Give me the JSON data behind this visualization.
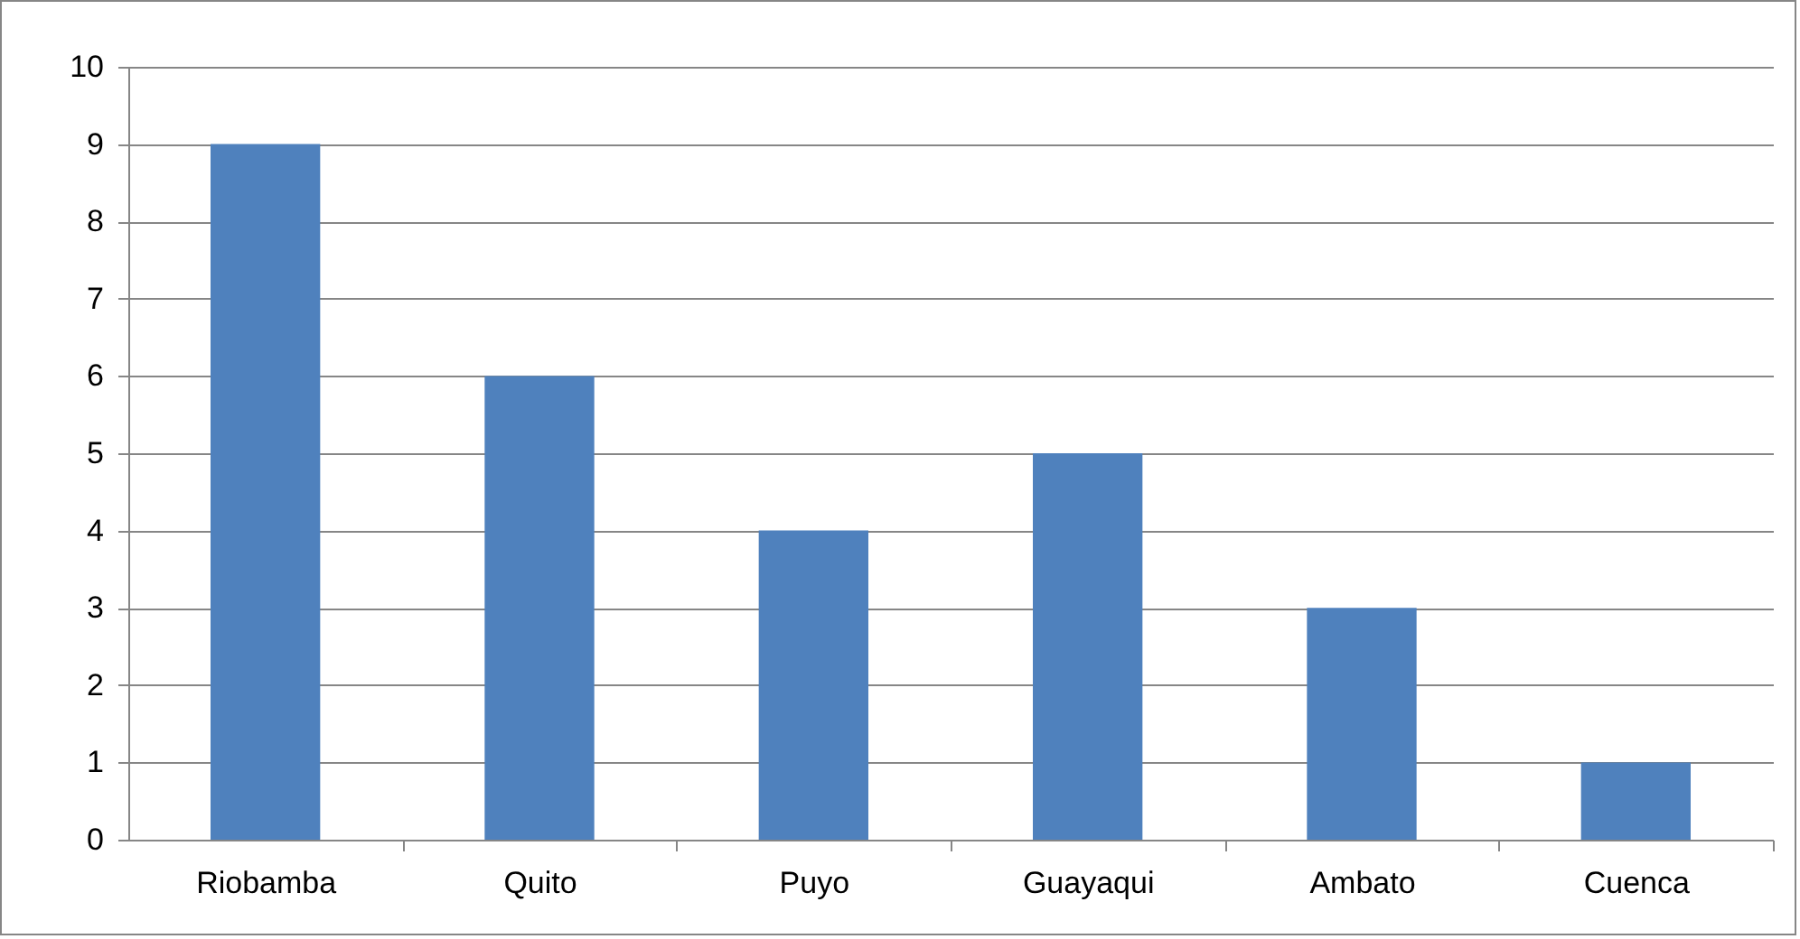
{
  "chart_data": {
    "type": "bar",
    "categories": [
      "Riobamba",
      "Quito",
      "Puyo",
      "Guayaqui",
      "Ambato",
      "Cuenca"
    ],
    "values": [
      9,
      6,
      4,
      5,
      3,
      1
    ],
    "color": "#4f81bd",
    "ylim": [
      0,
      10
    ],
    "yticks": [
      0,
      1,
      2,
      3,
      4,
      5,
      6,
      7,
      8,
      9,
      10
    ],
    "grid": "y"
  }
}
